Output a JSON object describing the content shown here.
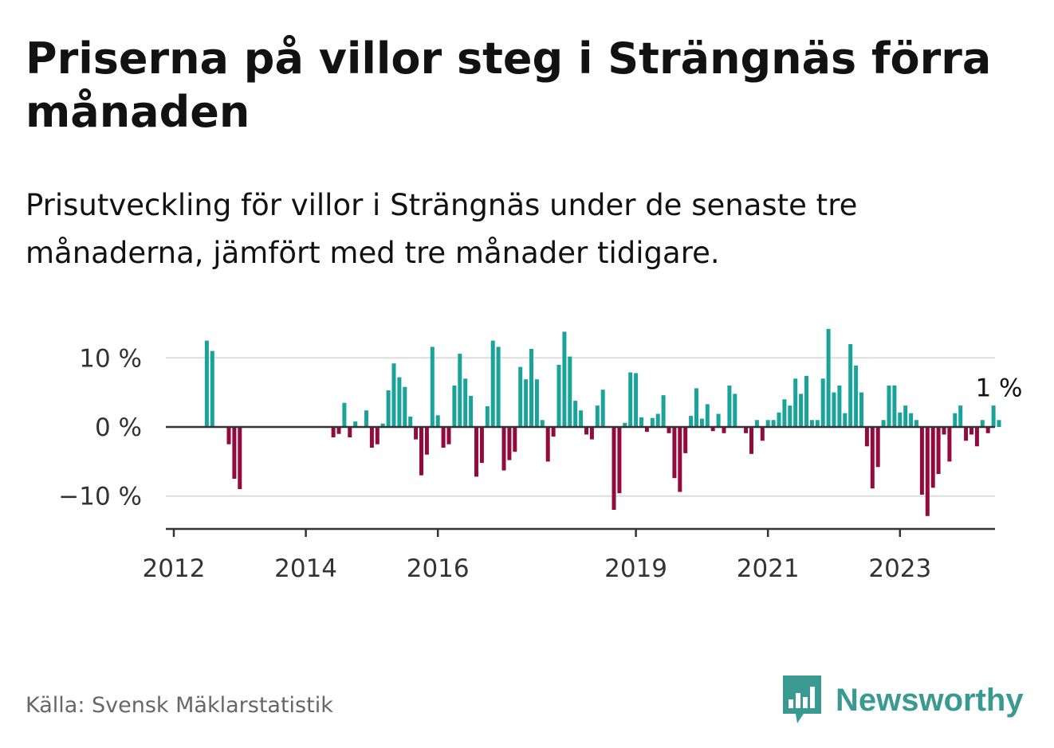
{
  "header": {
    "title": "Priserna på villor steg i Strängnäs förra månaden",
    "subtitle": "Prisutveckling för villor i Strängnäs under de senaste tre månaderna, jämfört med tre månader tidigare."
  },
  "footer": {
    "source": "Källa: Svensk Mäklarstatistik",
    "brand": "Newsworthy",
    "brand_icon": "bar-chart-speech-bubble-icon"
  },
  "colors": {
    "positive": "#1aa39a",
    "negative": "#930a3c",
    "axis": "#333333",
    "grid": "#dddddd",
    "brand": "#3a9a92"
  },
  "chart_data": {
    "type": "bar",
    "title": "",
    "xlabel": "",
    "ylabel": "",
    "ylim": [
      -15,
      15
    ],
    "y_ticks": [
      {
        "value": 10,
        "label": "10 %"
      },
      {
        "value": 0,
        "label": "0 %"
      },
      {
        "value": -10,
        "label": "−10 %"
      }
    ],
    "x_ticks": [
      {
        "year": 2012,
        "label": "2012"
      },
      {
        "year": 2014,
        "label": "2014"
      },
      {
        "year": 2016,
        "label": "2016"
      },
      {
        "year": 2019,
        "label": "2019"
      },
      {
        "year": 2021,
        "label": "2021"
      },
      {
        "year": 2023,
        "label": "2023"
      }
    ],
    "grid": true,
    "annotation": {
      "text": "1 %",
      "target": "last_bar"
    },
    "start_month": "2012-01",
    "unit": "%",
    "values": [
      null,
      null,
      null,
      null,
      null,
      null,
      12.5,
      11,
      null,
      null,
      -2.5,
      -7.5,
      -9,
      null,
      null,
      null,
      null,
      null,
      null,
      null,
      null,
      null,
      null,
      null,
      null,
      null,
      null,
      null,
      null,
      -1.5,
      -1,
      3.5,
      -1.5,
      0.8,
      null,
      2.4,
      -3,
      -2.5,
      0.5,
      5.3,
      9.2,
      7.2,
      5.8,
      1.5,
      -1.8,
      -7,
      -4,
      11.6,
      1.7,
      -3,
      -2.5,
      6,
      10.6,
      7,
      4.5,
      -7.2,
      -5.2,
      3,
      12.5,
      11.6,
      -6.3,
      -4.8,
      -3.6,
      8.7,
      6.9,
      11.3,
      6.9,
      1,
      -5,
      -1.4,
      9,
      13.8,
      10.2,
      3.8,
      2.4,
      -1.1,
      -1.8,
      3.1,
      5.4,
      null,
      -12,
      -9.6,
      0.6,
      7.9,
      7.8,
      1.4,
      -0.7,
      1.3,
      1.9,
      4.6,
      -0.9,
      -7.4,
      -9.4,
      -3.8,
      1.6,
      5.6,
      1.2,
      3.3,
      -0.6,
      1.9,
      -0.9,
      6,
      4.8,
      null,
      -0.9,
      -3.9,
      1,
      -2,
      1,
      1,
      2.1,
      4,
      3.1,
      7,
      4.8,
      7.4,
      1,
      1,
      7,
      14.2,
      5,
      6,
      2,
      12,
      8.9,
      5,
      -2.8,
      -8.9,
      -5.8,
      1,
      6,
      6,
      2.1,
      3.1,
      2,
      1,
      -9.8,
      -12.9,
      -8.8,
      -6.8,
      -1.1,
      -5,
      2,
      3.1,
      -2,
      -1.1,
      -2.8,
      1,
      -0.9,
      3.1,
      1
    ]
  }
}
